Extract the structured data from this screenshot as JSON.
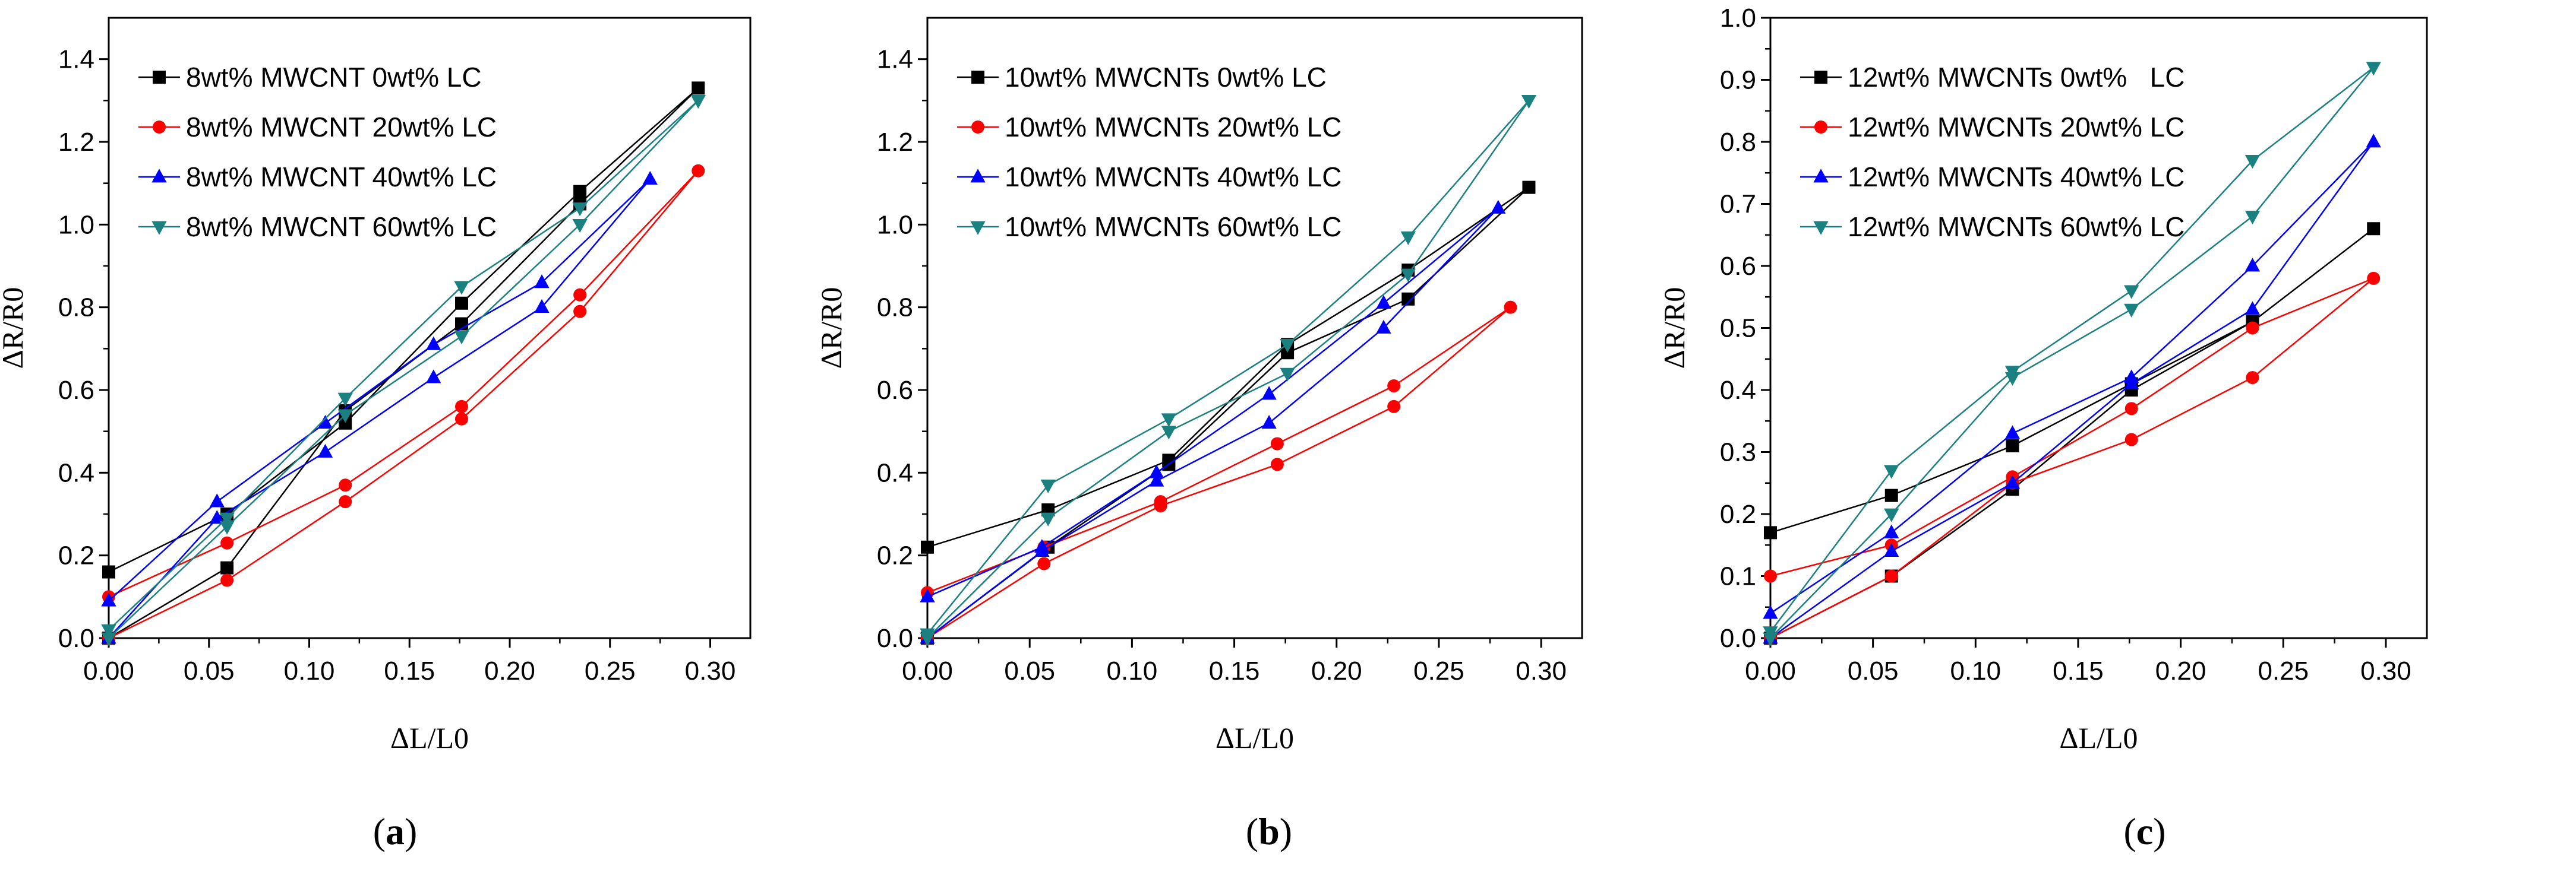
{
  "chart_data": [
    {
      "panel": "a",
      "type": "line",
      "caption": {
        "open": "(",
        "letter": "a",
        "close": ")"
      },
      "xlabel": "ΔL/L0",
      "ylabel": "ΔR/R0",
      "xlim": [
        0,
        0.32
      ],
      "ylim": [
        0,
        1.5
      ],
      "xticks": [
        "0.00",
        "0.05",
        "0.10",
        "0.15",
        "0.20",
        "0.25",
        "0.30"
      ],
      "yticks": [
        "0.0",
        "0.2",
        "0.4",
        "0.6",
        "0.8",
        "1.0",
        "1.2",
        "1.4"
      ],
      "xtick_values": [
        0,
        0.05,
        0.1,
        0.15,
        0.2,
        0.25,
        0.3
      ],
      "ytick_values": [
        0,
        0.2,
        0.4,
        0.6,
        0.8,
        1.0,
        1.2,
        1.4
      ],
      "legend_position": "top-left",
      "series": [
        {
          "name": "8wt% MWCNT 0wt% LC",
          "color": "#000000",
          "marker": "square",
          "x": [
            0,
            0.059,
            0.118,
            0.176,
            0.235,
            0.294,
            0.235,
            0.176,
            0.118,
            0.059,
            0
          ],
          "y": [
            0.16,
            0.3,
            0.52,
            0.81,
            1.08,
            1.33,
            1.05,
            0.76,
            0.55,
            0.17,
            0.0
          ]
        },
        {
          "name": "8wt% MWCNT 20wt% LC",
          "color": "#ff0000",
          "marker": "circle",
          "x": [
            0,
            0.059,
            0.118,
            0.176,
            0.235,
            0.294,
            0.235,
            0.176,
            0.118,
            0.059,
            0
          ],
          "y": [
            0.1,
            0.23,
            0.37,
            0.56,
            0.83,
            1.13,
            0.79,
            0.53,
            0.33,
            0.14,
            0.0
          ]
        },
        {
          "name": "8wt% MWCNT 40wt% LC",
          "color": "#0000ff",
          "marker": "triangle-up",
          "x": [
            0,
            0.054,
            0.108,
            0.162,
            0.216,
            0.27,
            0.216,
            0.162,
            0.108,
            0.054,
            0
          ],
          "y": [
            0.09,
            0.33,
            0.52,
            0.71,
            0.86,
            1.11,
            0.8,
            0.63,
            0.45,
            0.29,
            0.0
          ]
        },
        {
          "name": "8wt% MWCNT 60wt% LC",
          "color": "#1a8080",
          "marker": "triangle-down",
          "x": [
            0,
            0.059,
            0.118,
            0.176,
            0.235,
            0.294,
            0.235,
            0.176,
            0.118,
            0.059,
            0
          ],
          "y": [
            0.02,
            0.29,
            0.58,
            0.85,
            1.04,
            1.3,
            1.0,
            0.73,
            0.54,
            0.27,
            0.0
          ]
        }
      ]
    },
    {
      "panel": "b",
      "type": "line",
      "caption": {
        "open": "(",
        "letter": "b",
        "close": ")"
      },
      "xlabel": "ΔL/L0",
      "ylabel": "ΔR/R0",
      "xlim": [
        0,
        0.32
      ],
      "ylim": [
        0,
        1.5
      ],
      "xticks": [
        "0.00",
        "0.05",
        "0.10",
        "0.15",
        "0.20",
        "0.25",
        "0.30"
      ],
      "yticks": [
        "0.0",
        "0.2",
        "0.4",
        "0.6",
        "0.8",
        "1.0",
        "1.2",
        "1.4"
      ],
      "xtick_values": [
        0,
        0.05,
        0.1,
        0.15,
        0.2,
        0.25,
        0.3
      ],
      "ytick_values": [
        0,
        0.2,
        0.4,
        0.6,
        0.8,
        1.0,
        1.2,
        1.4
      ],
      "legend_position": "top-left",
      "series": [
        {
          "name": "10wt% MWCNTs 0wt% LC",
          "color": "#000000",
          "marker": "square",
          "x": [
            0,
            0.059,
            0.118,
            0.176,
            0.235,
            0.294,
            0.235,
            0.176,
            0.118,
            0.059,
            0
          ],
          "y": [
            0.22,
            0.31,
            0.43,
            0.71,
            0.89,
            1.09,
            0.82,
            0.69,
            0.42,
            0.22,
            0.0
          ]
        },
        {
          "name": "10wt% MWCNTs 20wt% LC",
          "color": "#ff0000",
          "marker": "circle",
          "x": [
            0,
            0.057,
            0.114,
            0.171,
            0.228,
            0.285,
            0.228,
            0.171,
            0.114,
            0.057,
            0
          ],
          "y": [
            0.11,
            0.22,
            0.33,
            0.47,
            0.61,
            0.8,
            0.56,
            0.42,
            0.32,
            0.18,
            0.0
          ]
        },
        {
          "name": "10wt% MWCNTs 40wt% LC",
          "color": "#0000ff",
          "marker": "triangle-up",
          "x": [
            0,
            0.056,
            0.112,
            0.167,
            0.223,
            0.279,
            0.223,
            0.167,
            0.112,
            0.056,
            0
          ],
          "y": [
            0.1,
            0.22,
            0.4,
            0.59,
            0.81,
            1.04,
            0.75,
            0.52,
            0.38,
            0.21,
            0.0
          ]
        },
        {
          "name": "10wt% MWCNTs 60wt% LC",
          "color": "#1a8080",
          "marker": "triangle-down",
          "x": [
            0,
            0.059,
            0.118,
            0.176,
            0.235,
            0.294,
            0.235,
            0.176,
            0.118,
            0.059,
            0
          ],
          "y": [
            0.01,
            0.37,
            0.53,
            0.71,
            0.97,
            1.3,
            0.88,
            0.64,
            0.5,
            0.29,
            0.0
          ]
        }
      ]
    },
    {
      "panel": "c",
      "type": "line",
      "caption": {
        "open": "(",
        "letter": "c",
        "close": ")"
      },
      "xlabel": "ΔL/L0",
      "ylabel": "ΔR/R0",
      "xlim": [
        0,
        0.32
      ],
      "ylim": [
        0,
        1.0
      ],
      "xticks": [
        "0.00",
        "0.05",
        "0.10",
        "0.15",
        "0.20",
        "0.25",
        "0.30"
      ],
      "yticks": [
        "0.0",
        "0.1",
        "0.2",
        "0.3",
        "0.4",
        "0.5",
        "0.6",
        "0.7",
        "0.8",
        "0.9",
        "1.0"
      ],
      "xtick_values": [
        0,
        0.05,
        0.1,
        0.15,
        0.2,
        0.25,
        0.3
      ],
      "ytick_values": [
        0,
        0.1,
        0.2,
        0.3,
        0.4,
        0.5,
        0.6,
        0.7,
        0.8,
        0.9,
        1.0
      ],
      "legend_position": "top-left",
      "series": [
        {
          "name": "12wt% MWCNTs 0wt%   LC",
          "color": "#000000",
          "marker": "square",
          "x": [
            0,
            0.059,
            0.118,
            0.176,
            0.235,
            0.294,
            0.235,
            0.176,
            0.118,
            0.059,
            0
          ],
          "y": [
            0.17,
            0.23,
            0.31,
            0.41,
            0.51,
            0.66,
            0.51,
            0.4,
            0.24,
            0.1,
            0.0
          ]
        },
        {
          "name": "12wt% MWCNTs 20wt% LC",
          "color": "#ff0000",
          "marker": "circle",
          "x": [
            0,
            0.059,
            0.118,
            0.176,
            0.235,
            0.294,
            0.235,
            0.176,
            0.118,
            0.059,
            0
          ],
          "y": [
            0.1,
            0.15,
            0.26,
            0.37,
            0.5,
            0.58,
            0.42,
            0.32,
            0.25,
            0.1,
            0.0
          ]
        },
        {
          "name": "12wt% MWCNTs 40wt% LC",
          "color": "#0000ff",
          "marker": "triangle-up",
          "x": [
            0,
            0.059,
            0.118,
            0.176,
            0.235,
            0.294,
            0.235,
            0.176,
            0.118,
            0.059,
            0
          ],
          "y": [
            0.04,
            0.17,
            0.33,
            0.42,
            0.6,
            0.8,
            0.53,
            0.41,
            0.25,
            0.14,
            0.0
          ]
        },
        {
          "name": "12wt% MWCNTs 60wt% LC",
          "color": "#1a8080",
          "marker": "triangle-down",
          "x": [
            0,
            0.059,
            0.118,
            0.176,
            0.235,
            0.294,
            0.235,
            0.176,
            0.118,
            0.059,
            0
          ],
          "y": [
            0.01,
            0.27,
            0.43,
            0.56,
            0.77,
            0.92,
            0.68,
            0.53,
            0.42,
            0.2,
            0.0
          ]
        }
      ]
    }
  ]
}
